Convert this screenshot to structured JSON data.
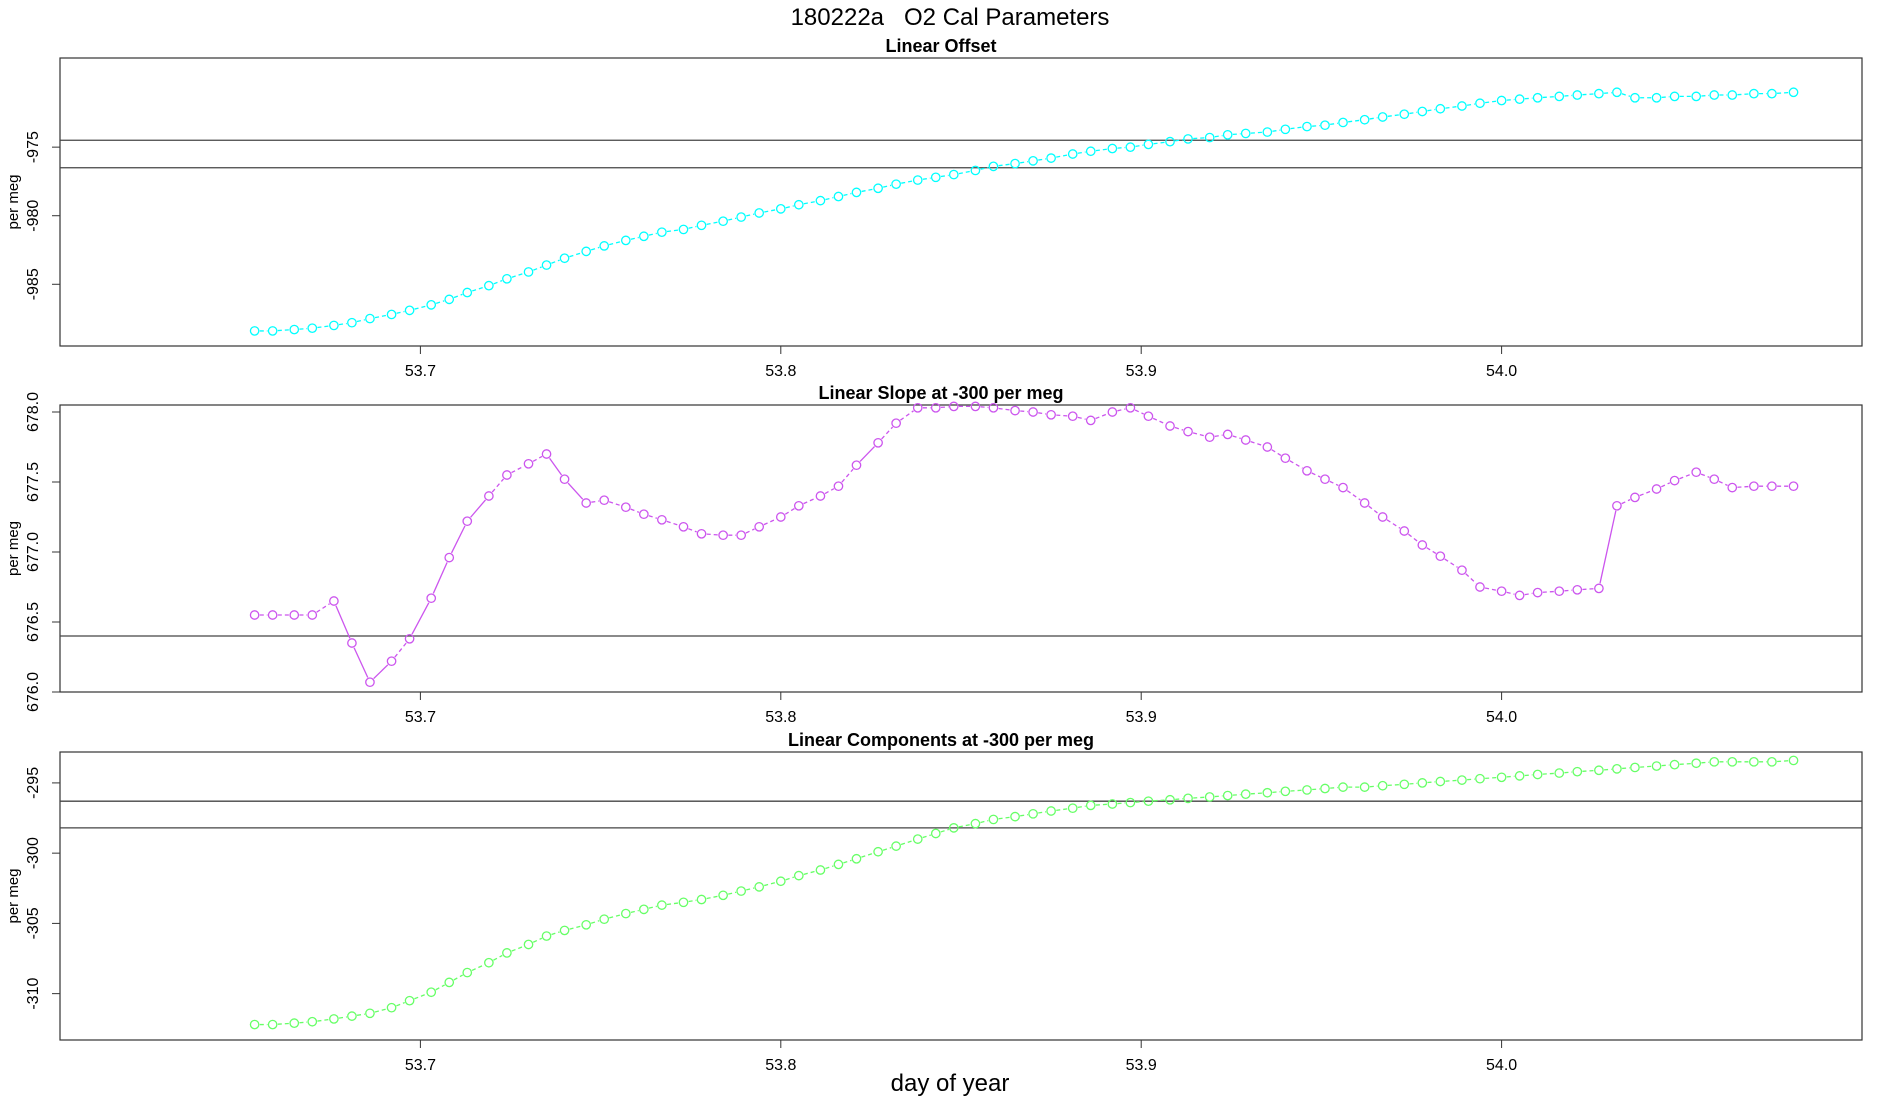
{
  "figure": {
    "title": "180222a   O2 Cal Parameters",
    "xlabel": "day of year"
  },
  "chart_data": [
    {
      "type": "line",
      "title": "Linear Offset",
      "xlabel": "day of year",
      "ylabel": "per meg",
      "xlim": [
        53.6,
        54.1
      ],
      "ylim": [
        -989.5,
        -968.5
      ],
      "xticks": [
        "53.7",
        "53.8",
        "53.9",
        "54.0"
      ],
      "yticks": [
        "-975",
        "-980",
        "-985"
      ],
      "color": "#00ffff",
      "hlines": [
        -974.5,
        -976.5
      ],
      "series": [
        {
          "x": [
            53.654,
            53.659,
            53.665,
            53.67,
            53.676,
            53.681,
            53.686,
            53.692,
            53.697,
            53.703,
            53.708,
            53.713,
            53.719,
            53.724,
            53.73,
            53.735,
            53.74,
            53.746,
            53.751,
            53.757,
            53.762,
            53.767,
            53.773,
            53.778,
            53.784,
            53.789,
            53.794,
            53.8,
            53.805,
            53.811,
            53.816,
            53.821,
            53.827,
            53.832,
            53.838,
            53.843,
            53.848,
            53.854,
            53.859,
            53.865,
            53.87,
            53.875,
            53.881,
            53.886,
            53.892,
            53.897,
            53.902,
            53.908,
            53.913,
            53.919,
            53.924,
            53.929,
            53.935,
            53.94,
            53.946,
            53.951,
            53.956,
            53.962,
            53.967,
            53.973,
            53.978,
            53.983,
            53.989,
            53.994,
            54.0,
            54.005,
            54.01,
            54.016,
            54.021,
            54.027,
            54.032,
            54.037,
            54.043,
            54.048,
            54.054,
            54.059,
            54.064,
            54.07,
            54.075,
            54.081
          ],
          "y": [
            -988.4,
            -988.4,
            -988.3,
            -988.2,
            -988.0,
            -987.8,
            -987.5,
            -987.2,
            -986.9,
            -986.5,
            -986.1,
            -985.6,
            -985.1,
            -984.6,
            -984.1,
            -983.6,
            -983.1,
            -982.6,
            -982.2,
            -981.8,
            -981.5,
            -981.2,
            -981.0,
            -980.7,
            -980.4,
            -980.1,
            -979.8,
            -979.5,
            -979.2,
            -978.9,
            -978.6,
            -978.3,
            -978.0,
            -977.7,
            -977.4,
            -977.2,
            -977.0,
            -976.7,
            -976.4,
            -976.2,
            -976.0,
            -975.8,
            -975.5,
            -975.3,
            -975.1,
            -975.0,
            -974.8,
            -974.6,
            -974.4,
            -974.3,
            -974.1,
            -974.0,
            -973.9,
            -973.7,
            -973.5,
            -973.4,
            -973.2,
            -973.0,
            -972.8,
            -972.6,
            -972.4,
            -972.2,
            -972.0,
            -971.8,
            -971.6,
            -971.5,
            -971.4,
            -971.3,
            -971.2,
            -971.1,
            -971.0,
            -971.4,
            -971.4,
            -971.3,
            -971.3,
            -971.2,
            -971.2,
            -971.1,
            -971.1,
            -971.0
          ]
        }
      ]
    },
    {
      "type": "line",
      "title": "Linear Slope at -300 per meg",
      "xlabel": "day of year",
      "ylabel": "per meg",
      "xlim": [
        53.6,
        54.1
      ],
      "ylim": [
        676.0,
        678.05
      ],
      "xticks": [
        "53.7",
        "53.8",
        "53.9",
        "54.0"
      ],
      "yticks": [
        "676.0",
        "676.5",
        "677.0",
        "677.5",
        "678.0"
      ],
      "color": "#cc55ee",
      "hlines": [
        676.4
      ],
      "series": [
        {
          "x": [
            53.654,
            53.659,
            53.665,
            53.67,
            53.676,
            53.681,
            53.686,
            53.692,
            53.697,
            53.703,
            53.708,
            53.713,
            53.719,
            53.724,
            53.73,
            53.735,
            53.74,
            53.746,
            53.751,
            53.757,
            53.762,
            53.767,
            53.773,
            53.778,
            53.784,
            53.789,
            53.794,
            53.8,
            53.805,
            53.811,
            53.816,
            53.821,
            53.827,
            53.832,
            53.838,
            53.843,
            53.848,
            53.854,
            53.859,
            53.865,
            53.87,
            53.875,
            53.881,
            53.886,
            53.892,
            53.897,
            53.902,
            53.908,
            53.913,
            53.919,
            53.924,
            53.929,
            53.935,
            53.94,
            53.946,
            53.951,
            53.956,
            53.962,
            53.967,
            53.973,
            53.978,
            53.983,
            53.989,
            53.994,
            54.0,
            54.005,
            54.01,
            54.016,
            54.021,
            54.027,
            54.032,
            54.037,
            54.043,
            54.048,
            54.054,
            54.059,
            54.064,
            54.07,
            54.075,
            54.081
          ],
          "y": [
            676.55,
            676.55,
            676.55,
            676.55,
            676.65,
            676.35,
            676.07,
            676.22,
            676.38,
            676.67,
            676.96,
            677.22,
            677.4,
            677.55,
            677.63,
            677.7,
            677.52,
            677.35,
            677.37,
            677.32,
            677.27,
            677.23,
            677.18,
            677.13,
            677.12,
            677.12,
            677.18,
            677.25,
            677.33,
            677.4,
            677.47,
            677.62,
            677.78,
            677.92,
            678.03,
            678.03,
            678.04,
            678.04,
            678.03,
            678.01,
            678.0,
            677.98,
            677.97,
            677.94,
            678.0,
            678.03,
            677.97,
            677.9,
            677.86,
            677.82,
            677.84,
            677.8,
            677.75,
            677.67,
            677.58,
            677.52,
            677.46,
            677.35,
            677.25,
            677.15,
            677.05,
            676.97,
            676.87,
            676.75,
            676.72,
            676.69,
            676.71,
            676.72,
            676.73,
            676.74,
            677.33,
            677.39,
            677.45,
            677.51,
            677.57,
            677.52,
            677.46,
            677.47,
            677.47,
            677.47
          ]
        }
      ]
    },
    {
      "type": "line",
      "title": "Linear Components at -300 per meg",
      "xlabel": "day of year",
      "ylabel": "per meg",
      "xlim": [
        53.6,
        54.1
      ],
      "ylim": [
        -313.3,
        -292.8
      ],
      "xticks": [
        "53.7",
        "53.8",
        "53.9",
        "54.0"
      ],
      "yticks": [
        "-295",
        "-300",
        "-305",
        "-310"
      ],
      "color": "#66ff66",
      "hlines": [
        -296.3,
        -298.2
      ],
      "series": [
        {
          "x": [
            53.654,
            53.659,
            53.665,
            53.67,
            53.676,
            53.681,
            53.686,
            53.692,
            53.697,
            53.703,
            53.708,
            53.713,
            53.719,
            53.724,
            53.73,
            53.735,
            53.74,
            53.746,
            53.751,
            53.757,
            53.762,
            53.767,
            53.773,
            53.778,
            53.784,
            53.789,
            53.794,
            53.8,
            53.805,
            53.811,
            53.816,
            53.821,
            53.827,
            53.832,
            53.838,
            53.843,
            53.848,
            53.854,
            53.859,
            53.865,
            53.87,
            53.875,
            53.881,
            53.886,
            53.892,
            53.897,
            53.902,
            53.908,
            53.913,
            53.919,
            53.924,
            53.929,
            53.935,
            53.94,
            53.946,
            53.951,
            53.956,
            53.962,
            53.967,
            53.973,
            53.978,
            53.983,
            53.989,
            53.994,
            54.0,
            54.005,
            54.01,
            54.016,
            54.021,
            54.027,
            54.032,
            54.037,
            54.043,
            54.048,
            54.054,
            54.059,
            54.064,
            54.07,
            54.075,
            54.081
          ],
          "y": [
            -312.2,
            -312.2,
            -312.1,
            -312.0,
            -311.8,
            -311.6,
            -311.4,
            -311.0,
            -310.5,
            -309.9,
            -309.2,
            -308.5,
            -307.8,
            -307.1,
            -306.5,
            -305.9,
            -305.5,
            -305.1,
            -304.7,
            -304.3,
            -304.0,
            -303.7,
            -303.5,
            -303.3,
            -303.0,
            -302.7,
            -302.4,
            -302.0,
            -301.6,
            -301.2,
            -300.8,
            -300.4,
            -299.9,
            -299.5,
            -299.0,
            -298.6,
            -298.2,
            -297.9,
            -297.6,
            -297.4,
            -297.2,
            -297.0,
            -296.8,
            -296.6,
            -296.5,
            -296.4,
            -296.3,
            -296.2,
            -296.1,
            -296.0,
            -295.9,
            -295.8,
            -295.7,
            -295.6,
            -295.5,
            -295.4,
            -295.3,
            -295.3,
            -295.2,
            -295.1,
            -295.0,
            -294.9,
            -294.8,
            -294.7,
            -294.6,
            -294.5,
            -294.4,
            -294.3,
            -294.2,
            -294.1,
            -294.0,
            -293.9,
            -293.8,
            -293.7,
            -293.6,
            -293.5,
            -293.5,
            -293.5,
            -293.5,
            -293.4
          ]
        }
      ]
    }
  ]
}
